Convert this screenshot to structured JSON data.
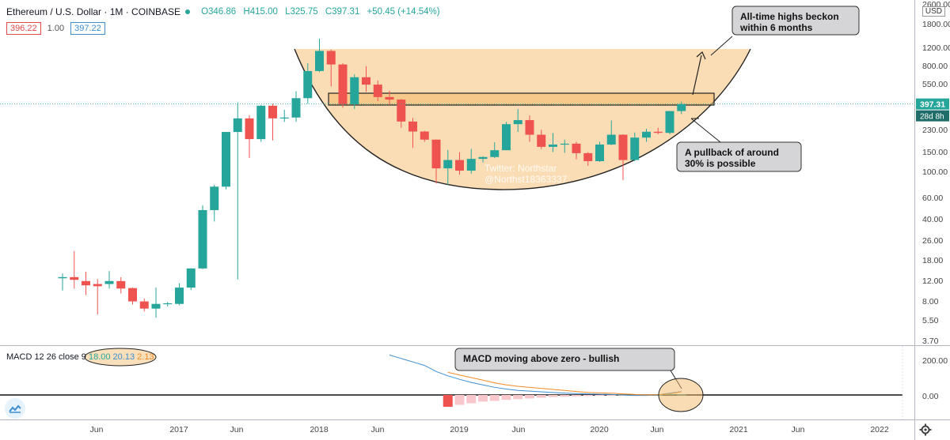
{
  "header": {
    "symbol": "Ethereum / U.S. Dollar · 1M · COINBASE",
    "open": "O346.86",
    "high": "H415.00",
    "low": "L325.75",
    "close": "C397.31",
    "change": "+50.45 (+14.54%)",
    "bid": "396.22",
    "spread": "1.00",
    "ask": "397.22",
    "currency": "USD"
  },
  "macd_legend": {
    "label": "MACD 12 26 close 9",
    "v1": "18.00",
    "v2": "20.13",
    "v3": "2.13"
  },
  "annotations": {
    "ath": [
      "All-time highs beckon",
      "within 6 months"
    ],
    "pullback": [
      "A pullback of around",
      "30% is possible"
    ],
    "macd": "MACD moving above zero - bullish",
    "watermark": [
      "Twitter: Northstar",
      "@Northst18363337"
    ]
  },
  "price_axis": {
    "ticks": [
      "2600.00",
      "1800.00",
      "1200.00",
      "800.00",
      "550.00",
      "230.00",
      "150.00",
      "100.00",
      "60.00",
      "40.00",
      "26.00",
      "18.00",
      "12.00",
      "8.00",
      "5.50",
      "3.70"
    ],
    "last_price": "397.31",
    "countdown": "28d 8h"
  },
  "macd_axis": {
    "ticks": [
      "200.00",
      "0.00"
    ]
  },
  "time_axis": {
    "labels": [
      "Jun",
      "2017",
      "Jun",
      "2018",
      "Jun",
      "2019",
      "Jun",
      "2020",
      "Jun",
      "2021",
      "Jun",
      "2022"
    ]
  },
  "colors": {
    "up": "#26a69a",
    "down": "#ef5350",
    "orange": "#fad7a8",
    "macd": "#3e8ed0",
    "signal": "#f08a24"
  },
  "icons": {
    "left": "tradingview-logo-icon",
    "right": "gear-icon"
  },
  "chart_data": {
    "type": "candlestick",
    "scale": "log",
    "interval": "1M",
    "ylim": [
      3.5,
      2600
    ],
    "months": [
      "2016-03",
      "2016-04",
      "2016-05",
      "2016-06",
      "2016-07",
      "2016-08",
      "2016-09",
      "2016-10",
      "2016-11",
      "2016-12",
      "2017-01",
      "2017-02",
      "2017-03",
      "2017-04",
      "2017-05",
      "2017-06",
      "2017-07",
      "2017-08",
      "2017-09",
      "2017-10",
      "2017-11",
      "2017-12",
      "2018-01",
      "2018-02",
      "2018-03",
      "2018-04",
      "2018-05",
      "2018-06",
      "2018-07",
      "2018-08",
      "2018-09",
      "2018-10",
      "2018-11",
      "2018-12",
      "2019-01",
      "2019-02",
      "2019-03",
      "2019-04",
      "2019-05",
      "2019-06",
      "2019-07",
      "2019-08",
      "2019-09",
      "2019-10",
      "2019-11",
      "2019-12",
      "2020-01",
      "2020-02",
      "2020-03",
      "2020-04",
      "2020-05",
      "2020-06",
      "2020-07",
      "2020-08"
    ],
    "ohlc": [
      [
        13.2,
        14.5,
        10.4,
        13.5
      ],
      [
        13.5,
        22.5,
        10.8,
        12.8
      ],
      [
        12.5,
        15,
        9.5,
        11.5
      ],
      [
        11.8,
        13,
        6.5,
        11.3
      ],
      [
        11.8,
        15.2,
        10.8,
        12.5
      ],
      [
        12.5,
        13.5,
        9.8,
        10.8
      ],
      [
        10.9,
        11,
        7.9,
        8.4
      ],
      [
        8.4,
        8.9,
        6.9,
        7.3
      ],
      [
        7.3,
        11,
        6.1,
        8
      ],
      [
        8,
        8.3,
        7.6,
        8.1
      ],
      [
        8,
        12,
        7.8,
        11
      ],
      [
        11,
        16,
        10.5,
        16
      ],
      [
        16,
        55,
        15.8,
        50
      ],
      [
        50,
        82,
        40,
        79
      ],
      [
        79,
        230,
        75,
        230
      ],
      [
        230,
        410,
        12.9,
        300
      ],
      [
        300,
        320,
        138,
        200
      ],
      [
        200,
        390,
        190,
        384
      ],
      [
        384,
        400,
        195,
        300
      ],
      [
        300,
        355,
        280,
        305
      ],
      [
        305,
        510,
        280,
        445
      ],
      [
        445,
        880,
        400,
        756
      ],
      [
        756,
        1420,
        740,
        1120
      ],
      [
        1120,
        1150,
        560,
        860
      ],
      [
        860,
        880,
        370,
        395
      ],
      [
        395,
        710,
        360,
        670
      ],
      [
        670,
        832,
        504,
        580
      ],
      [
        580,
        630,
        420,
        455
      ],
      [
        455,
        515,
        390,
        433
      ],
      [
        433,
        438,
        250,
        282
      ],
      [
        282,
        302,
        168,
        232
      ],
      [
        232,
        235,
        190,
        198
      ],
      [
        198,
        199,
        84,
        113
      ],
      [
        113,
        162,
        82,
        133
      ],
      [
        133,
        155,
        100,
        108
      ],
      [
        108,
        165,
        102,
        136
      ],
      [
        136,
        143,
        127,
        141
      ],
      [
        141,
        188,
        138,
        161
      ],
      [
        161,
        280,
        161,
        268
      ],
      [
        268,
        360,
        230,
        290
      ],
      [
        290,
        318,
        190,
        218
      ],
      [
        218,
        240,
        165,
        172
      ],
      [
        172,
        225,
        155,
        180
      ],
      [
        180,
        198,
        153,
        183
      ],
      [
        183,
        190,
        135,
        152
      ],
      [
        152,
        155,
        119,
        130
      ],
      [
        130,
        190,
        128,
        180
      ],
      [
        180,
        288,
        178,
        218
      ],
      [
        218,
        220,
        90,
        133
      ],
      [
        133,
        228,
        130,
        206
      ],
      [
        206,
        245,
        190,
        231
      ],
      [
        231,
        250,
        220,
        226
      ],
      [
        226,
        345,
        220,
        346
      ],
      [
        346,
        415,
        326,
        397
      ]
    ],
    "macd": {
      "macd_line": [
        null,
        null,
        null,
        null,
        null,
        null,
        null,
        null,
        null,
        null,
        null,
        null,
        null,
        null,
        null,
        null,
        null,
        null,
        null,
        null,
        null,
        null,
        null,
        null,
        null,
        null,
        null,
        null,
        230,
        210,
        190,
        170,
        135,
        110,
        90,
        72,
        58,
        44,
        34,
        26,
        22,
        18,
        14,
        11,
        8,
        6,
        4,
        3,
        0,
        -2,
        -3,
        1,
        10,
        20
      ],
      "signal_line": [
        null,
        null,
        null,
        null,
        null,
        null,
        null,
        null,
        null,
        null,
        null,
        null,
        null,
        null,
        null,
        null,
        null,
        null,
        null,
        null,
        null,
        null,
        null,
        null,
        null,
        null,
        null,
        null,
        null,
        null,
        null,
        null,
        null,
        130,
        115,
        100,
        85,
        70,
        58,
        50,
        44,
        38,
        32,
        26,
        20,
        15,
        12,
        10,
        6,
        3,
        0,
        1,
        6,
        18
      ],
      "histogram": [
        null,
        null,
        null,
        null,
        null,
        null,
        null,
        null,
        null,
        null,
        null,
        null,
        null,
        null,
        null,
        null,
        null,
        null,
        null,
        null,
        null,
        null,
        null,
        null,
        null,
        null,
        null,
        null,
        null,
        null,
        null,
        null,
        null,
        -68,
        -57,
        -48,
        -38,
        -34,
        -28,
        -24,
        -20,
        -16,
        -12,
        -10,
        -8,
        -6,
        -5,
        -4,
        -4,
        -6,
        -5,
        0,
        4,
        2.13
      ]
    },
    "macd_ylim": [
      -60,
      280
    ]
  }
}
